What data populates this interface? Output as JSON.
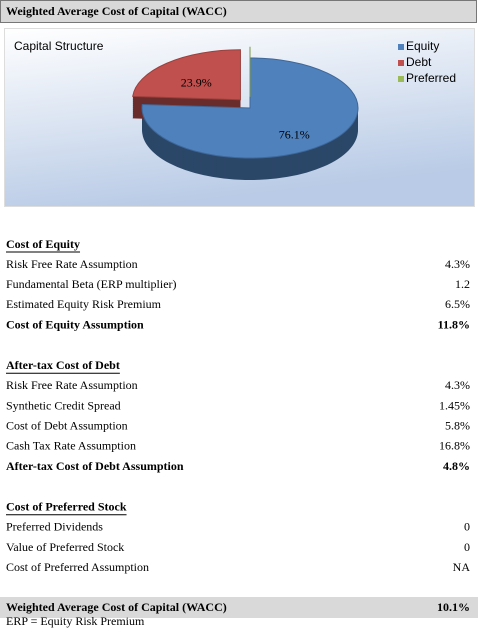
{
  "header": {
    "title": "Weighted Average Cost of Capital (WACC)"
  },
  "chart_data": {
    "type": "pie",
    "title": "Capital Structure",
    "categories": [
      "Equity",
      "Debt",
      "Preferred"
    ],
    "values": [
      76.1,
      23.9,
      0
    ],
    "value_labels": [
      "76.1%",
      "23.9%",
      null
    ],
    "colors": [
      "#4f81bd",
      "#c0504d",
      "#9bbb59"
    ],
    "legend": "right"
  },
  "sections": [
    {
      "title": "Cost of Equity",
      "rows": [
        [
          "Risk Free Rate Assumption",
          "4.3%"
        ],
        [
          "Fundamental Beta (ERP multiplier)",
          "1.2"
        ],
        [
          "Estimated Equity Risk Premium",
          "6.5%"
        ]
      ],
      "summary": [
        "Cost of Equity Assumption",
        "11.8%"
      ]
    },
    {
      "title": "After-tax Cost of Debt",
      "rows": [
        [
          "Risk Free Rate Assumption",
          "4.3%"
        ],
        [
          "Synthetic Credit Spread",
          "1.45%"
        ],
        [
          "Cost of Debt Assumption",
          "5.8%"
        ],
        [
          "Cash Tax Rate Assumption",
          "16.8%"
        ]
      ],
      "summary": [
        "After-tax Cost of Debt Assumption",
        "4.8%"
      ]
    },
    {
      "title": "Cost of Preferred Stock",
      "rows": [
        [
          "Preferred Dividends",
          "0"
        ],
        [
          "Value of Preferred Stock",
          "0"
        ],
        [
          "Cost of Preferred Assumption",
          "NA"
        ]
      ]
    }
  ],
  "footer": {
    "total": [
      "Weighted Average Cost of Capital (WACC)",
      "10.1%"
    ],
    "note": "ERP = Equity Risk Premium"
  }
}
